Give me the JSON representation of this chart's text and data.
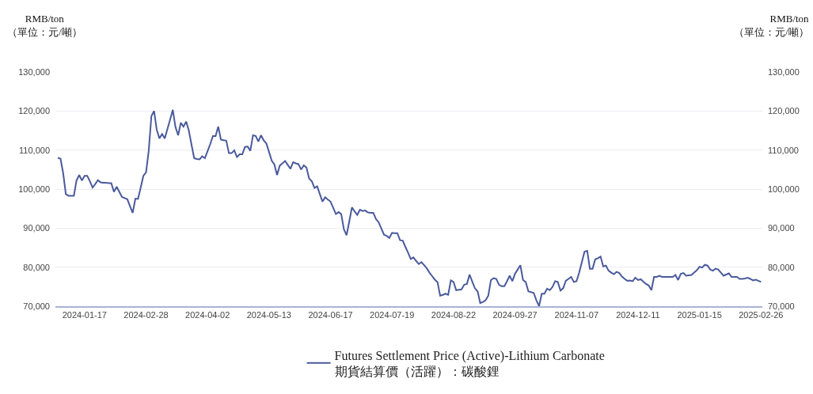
{
  "chart_data": {
    "type": "line",
    "ylabel": "RMB/ton\n（單位：元/噸）",
    "y2label": "RMB/ton\n（單位：元/噸）",
    "categories": [
      null,
      null,
      null,
      null,
      null,
      null,
      null,
      null,
      null,
      null,
      "2024-01-17",
      null,
      null,
      null,
      null,
      null,
      null,
      null,
      null,
      null,
      null,
      null,
      null,
      null,
      null,
      null,
      null,
      null,
      null,
      null,
      null,
      null,
      null,
      "2024-02-28",
      null,
      null,
      null,
      null,
      null,
      null,
      null,
      null,
      null,
      null,
      null,
      null,
      null,
      null,
      null,
      null,
      null,
      null,
      null,
      null,
      null,
      null,
      "2024-04-02",
      null,
      null,
      null,
      null,
      null,
      null,
      null,
      null,
      null,
      null,
      null,
      null,
      null,
      null,
      null,
      null,
      null,
      null,
      null,
      null,
      null,
      null,
      "2024-05-13",
      null,
      null,
      null,
      null,
      null,
      null,
      null,
      null,
      null,
      null,
      null,
      null,
      null,
      null,
      null,
      null,
      null,
      null,
      null,
      null,
      null,
      null,
      "2024-06-17",
      null,
      null,
      null,
      null,
      null,
      null,
      null,
      null,
      null,
      null,
      null,
      null,
      null,
      null,
      null,
      null,
      null,
      null,
      null,
      null,
      null,
      null,
      "2024-07-19",
      null,
      null,
      null,
      null,
      null,
      null,
      null,
      null,
      null,
      null,
      null,
      null,
      null,
      null,
      null,
      null,
      null,
      null,
      null,
      null,
      null,
      null,
      "2024-08-22",
      null,
      null,
      null,
      null,
      null,
      null,
      null,
      null,
      null,
      null,
      null,
      null,
      null,
      null,
      null,
      null,
      null,
      null,
      null,
      null,
      null,
      null,
      "2024-09-27",
      null,
      null,
      null,
      null,
      null,
      null,
      null,
      null,
      null,
      null,
      null,
      null,
      null,
      null,
      null,
      null,
      null,
      null,
      null,
      null,
      null,
      null,
      "2024-11-07",
      null,
      null,
      null,
      null,
      null,
      null,
      null,
      null,
      null,
      null,
      null,
      null,
      null,
      null,
      null,
      null,
      null,
      null,
      null,
      null,
      null,
      null,
      "2024-12-11",
      null,
      null,
      null,
      null,
      null,
      null,
      null,
      null,
      null,
      null,
      null,
      null,
      null,
      null,
      null,
      null,
      null,
      null,
      null,
      null,
      null,
      null,
      "2025-01-15",
      null,
      null,
      null,
      null,
      null,
      null,
      null,
      null,
      null,
      null,
      null,
      null,
      null,
      null,
      null,
      null,
      null,
      null,
      null,
      null,
      null,
      null,
      "2025-02-26"
    ],
    "ylim": [
      70000,
      130000
    ],
    "yticks": [
      {
        "value": 70000,
        "label": "70,000"
      },
      {
        "value": 80000,
        "label": "80,000"
      },
      {
        "value": 90000,
        "label": "90,000"
      },
      {
        "value": 100000,
        "label": "100,000"
      },
      {
        "value": 110000,
        "label": "110,000"
      },
      {
        "value": 120000,
        "label": "120,000"
      },
      {
        "value": 130000,
        "label": "130,000"
      }
    ],
    "y2lim": [
      70000,
      130000
    ],
    "y2ticks": [
      {
        "value": 70000,
        "label": "70,000"
      },
      {
        "value": 80000,
        "label": "80,000"
      },
      {
        "value": 90000,
        "label": "90,000"
      },
      {
        "value": 100000,
        "label": "100,000"
      },
      {
        "value": 110000,
        "label": "110,000"
      },
      {
        "value": 120000,
        "label": "120,000"
      },
      {
        "value": 130000,
        "label": "130,000"
      }
    ],
    "grid": "y",
    "legend": "bottom",
    "marker": "none",
    "line_style": "solid",
    "series": [
      {
        "name": "Futures Settlement Price (Active)-Lithium Carbonate\n期貨結算價（活躍）：碳酸鋰",
        "color": "#4a5a9c",
        "values": [
          108000,
          107800,
          104100,
          98700,
          98300,
          98300,
          98300,
          102200,
          103600,
          102200,
          103400,
          103400,
          102000,
          100400,
          101300,
          102300,
          101700,
          101600,
          101600,
          101500,
          101500,
          99300,
          100600,
          99300,
          98000,
          97700,
          97400,
          95600,
          93900,
          97500,
          97500,
          100400,
          103400,
          104300,
          109800,
          118700,
          120000,
          115200,
          113000,
          114100,
          113000,
          115400,
          117800,
          120300,
          115900,
          113800,
          117000,
          116000,
          117300,
          115000,
          111400,
          107900,
          107700,
          107600,
          108400,
          107900,
          109700,
          111500,
          113600,
          113600,
          116000,
          112700,
          112500,
          112400,
          109200,
          109200,
          109900,
          108200,
          108900,
          108900,
          110800,
          110900,
          109800,
          113800,
          113600,
          112200,
          113800,
          112500,
          111700,
          109500,
          107300,
          106300,
          103600,
          106000,
          106600,
          107200,
          106200,
          105200,
          106900,
          106600,
          106400,
          105000,
          106100,
          105500,
          102700,
          102000,
          100300,
          100700,
          98700,
          96800,
          97900,
          97300,
          96800,
          95200,
          93600,
          94100,
          93600,
          89700,
          88200,
          91700,
          95300,
          94300,
          93400,
          94700,
          94400,
          94500,
          94000,
          93900,
          93900,
          92300,
          91500,
          89900,
          88300,
          88000,
          87500,
          88800,
          88700,
          88700,
          86900,
          86800,
          85200,
          83700,
          82100,
          82500,
          81600,
          80800,
          81300,
          80500,
          79700,
          78600,
          77700,
          76800,
          76200,
          72700,
          72900,
          73200,
          72900,
          76600,
          76200,
          74100,
          74200,
          74300,
          75500,
          75700,
          78100,
          76300,
          74600,
          73800,
          70800,
          71100,
          71500,
          72700,
          76700,
          77200,
          77000,
          75500,
          75100,
          75100,
          76400,
          77800,
          76400,
          78300,
          79400,
          80500,
          76700,
          76200,
          73800,
          73600,
          73400,
          71500,
          70000,
          73200,
          73200,
          74500,
          74100,
          74900,
          76400,
          76200,
          74000,
          74600,
          76500,
          77000,
          77500,
          76200,
          76400,
          78600,
          81300,
          84000,
          84200,
          79600,
          79600,
          82000,
          82300,
          82700,
          80200,
          80400,
          79100,
          78600,
          78200,
          78800,
          78500,
          77600,
          77000,
          76500,
          76600,
          76400,
          77300,
          76700,
          76900,
          76300,
          75700,
          75300,
          74100,
          77500,
          77500,
          77800,
          77500,
          77500,
          77500,
          77500,
          77500,
          78000,
          76700,
          78300,
          78500,
          77800,
          77900,
          78000,
          78600,
          79200,
          80100,
          79900,
          80600,
          80400,
          79400,
          79100,
          79600,
          79400,
          78600,
          77800,
          78100,
          78400,
          77500,
          77500,
          77500,
          77000,
          77000,
          77100,
          77300,
          77000,
          76600,
          76800,
          76500,
          76200
        ]
      }
    ]
  }
}
